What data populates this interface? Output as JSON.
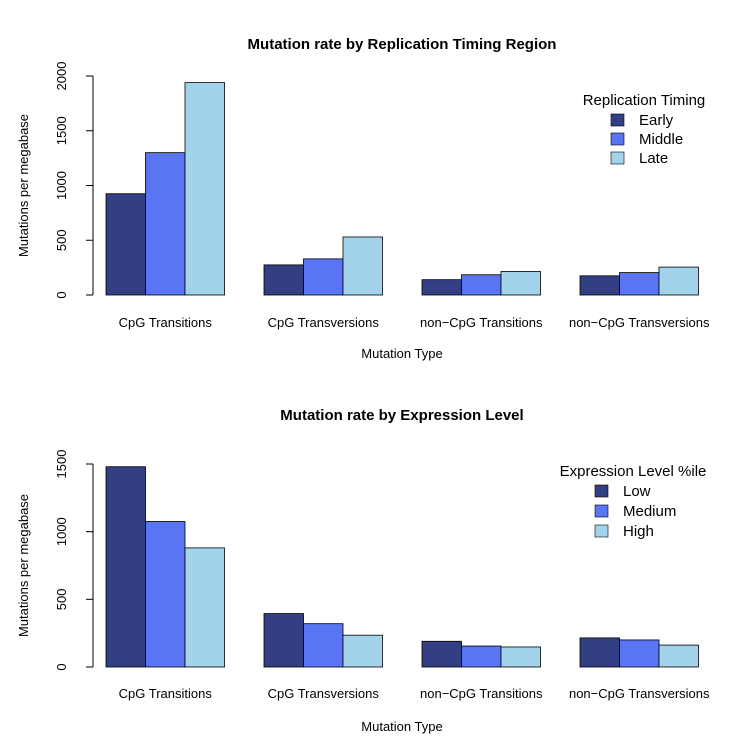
{
  "chart_data": [
    {
      "type": "bar",
      "title": "Mutation rate by Replication Timing Region",
      "xlabel": "Mutation Type",
      "ylabel": "Mutations per megabase",
      "ylim": [
        0,
        2000
      ],
      "yticks": [
        0,
        500,
        1000,
        1500,
        2000
      ],
      "categories": [
        "CpG Transitions",
        "CpG Transversions",
        "non−CpG Transitions",
        "non−CpG Transversions"
      ],
      "legend_title": "Replication Timing",
      "legend_position": "top-right",
      "grid": false,
      "series": [
        {
          "name": "Early",
          "color": "#323F83",
          "values": [
            925,
            275,
            140,
            175
          ]
        },
        {
          "name": "Middle",
          "color": "#5A75F3",
          "values": [
            1300,
            330,
            185,
            205
          ]
        },
        {
          "name": "Late",
          "color": "#A2D3EB",
          "values": [
            1940,
            530,
            215,
            255
          ]
        }
      ]
    },
    {
      "type": "bar",
      "title": "Mutation rate by Expression Level",
      "xlabel": "Mutation Type",
      "ylabel": "Mutations per megabase",
      "ylim": [
        0,
        1500
      ],
      "yticks": [
        0,
        500,
        1000,
        1500
      ],
      "categories": [
        "CpG Transitions",
        "CpG Transversions",
        "non−CpG Transitions",
        "non−CpG Transversions"
      ],
      "legend_title": "Expression Level %ile",
      "legend_position": "top-right",
      "grid": false,
      "series": [
        {
          "name": "Low",
          "color": "#323F83",
          "values": [
            1480,
            395,
            190,
            215
          ]
        },
        {
          "name": "Medium",
          "color": "#5A75F3",
          "values": [
            1075,
            320,
            155,
            200
          ]
        },
        {
          "name": "High",
          "color": "#A2D3EB",
          "values": [
            880,
            235,
            148,
            162
          ]
        }
      ]
    }
  ]
}
